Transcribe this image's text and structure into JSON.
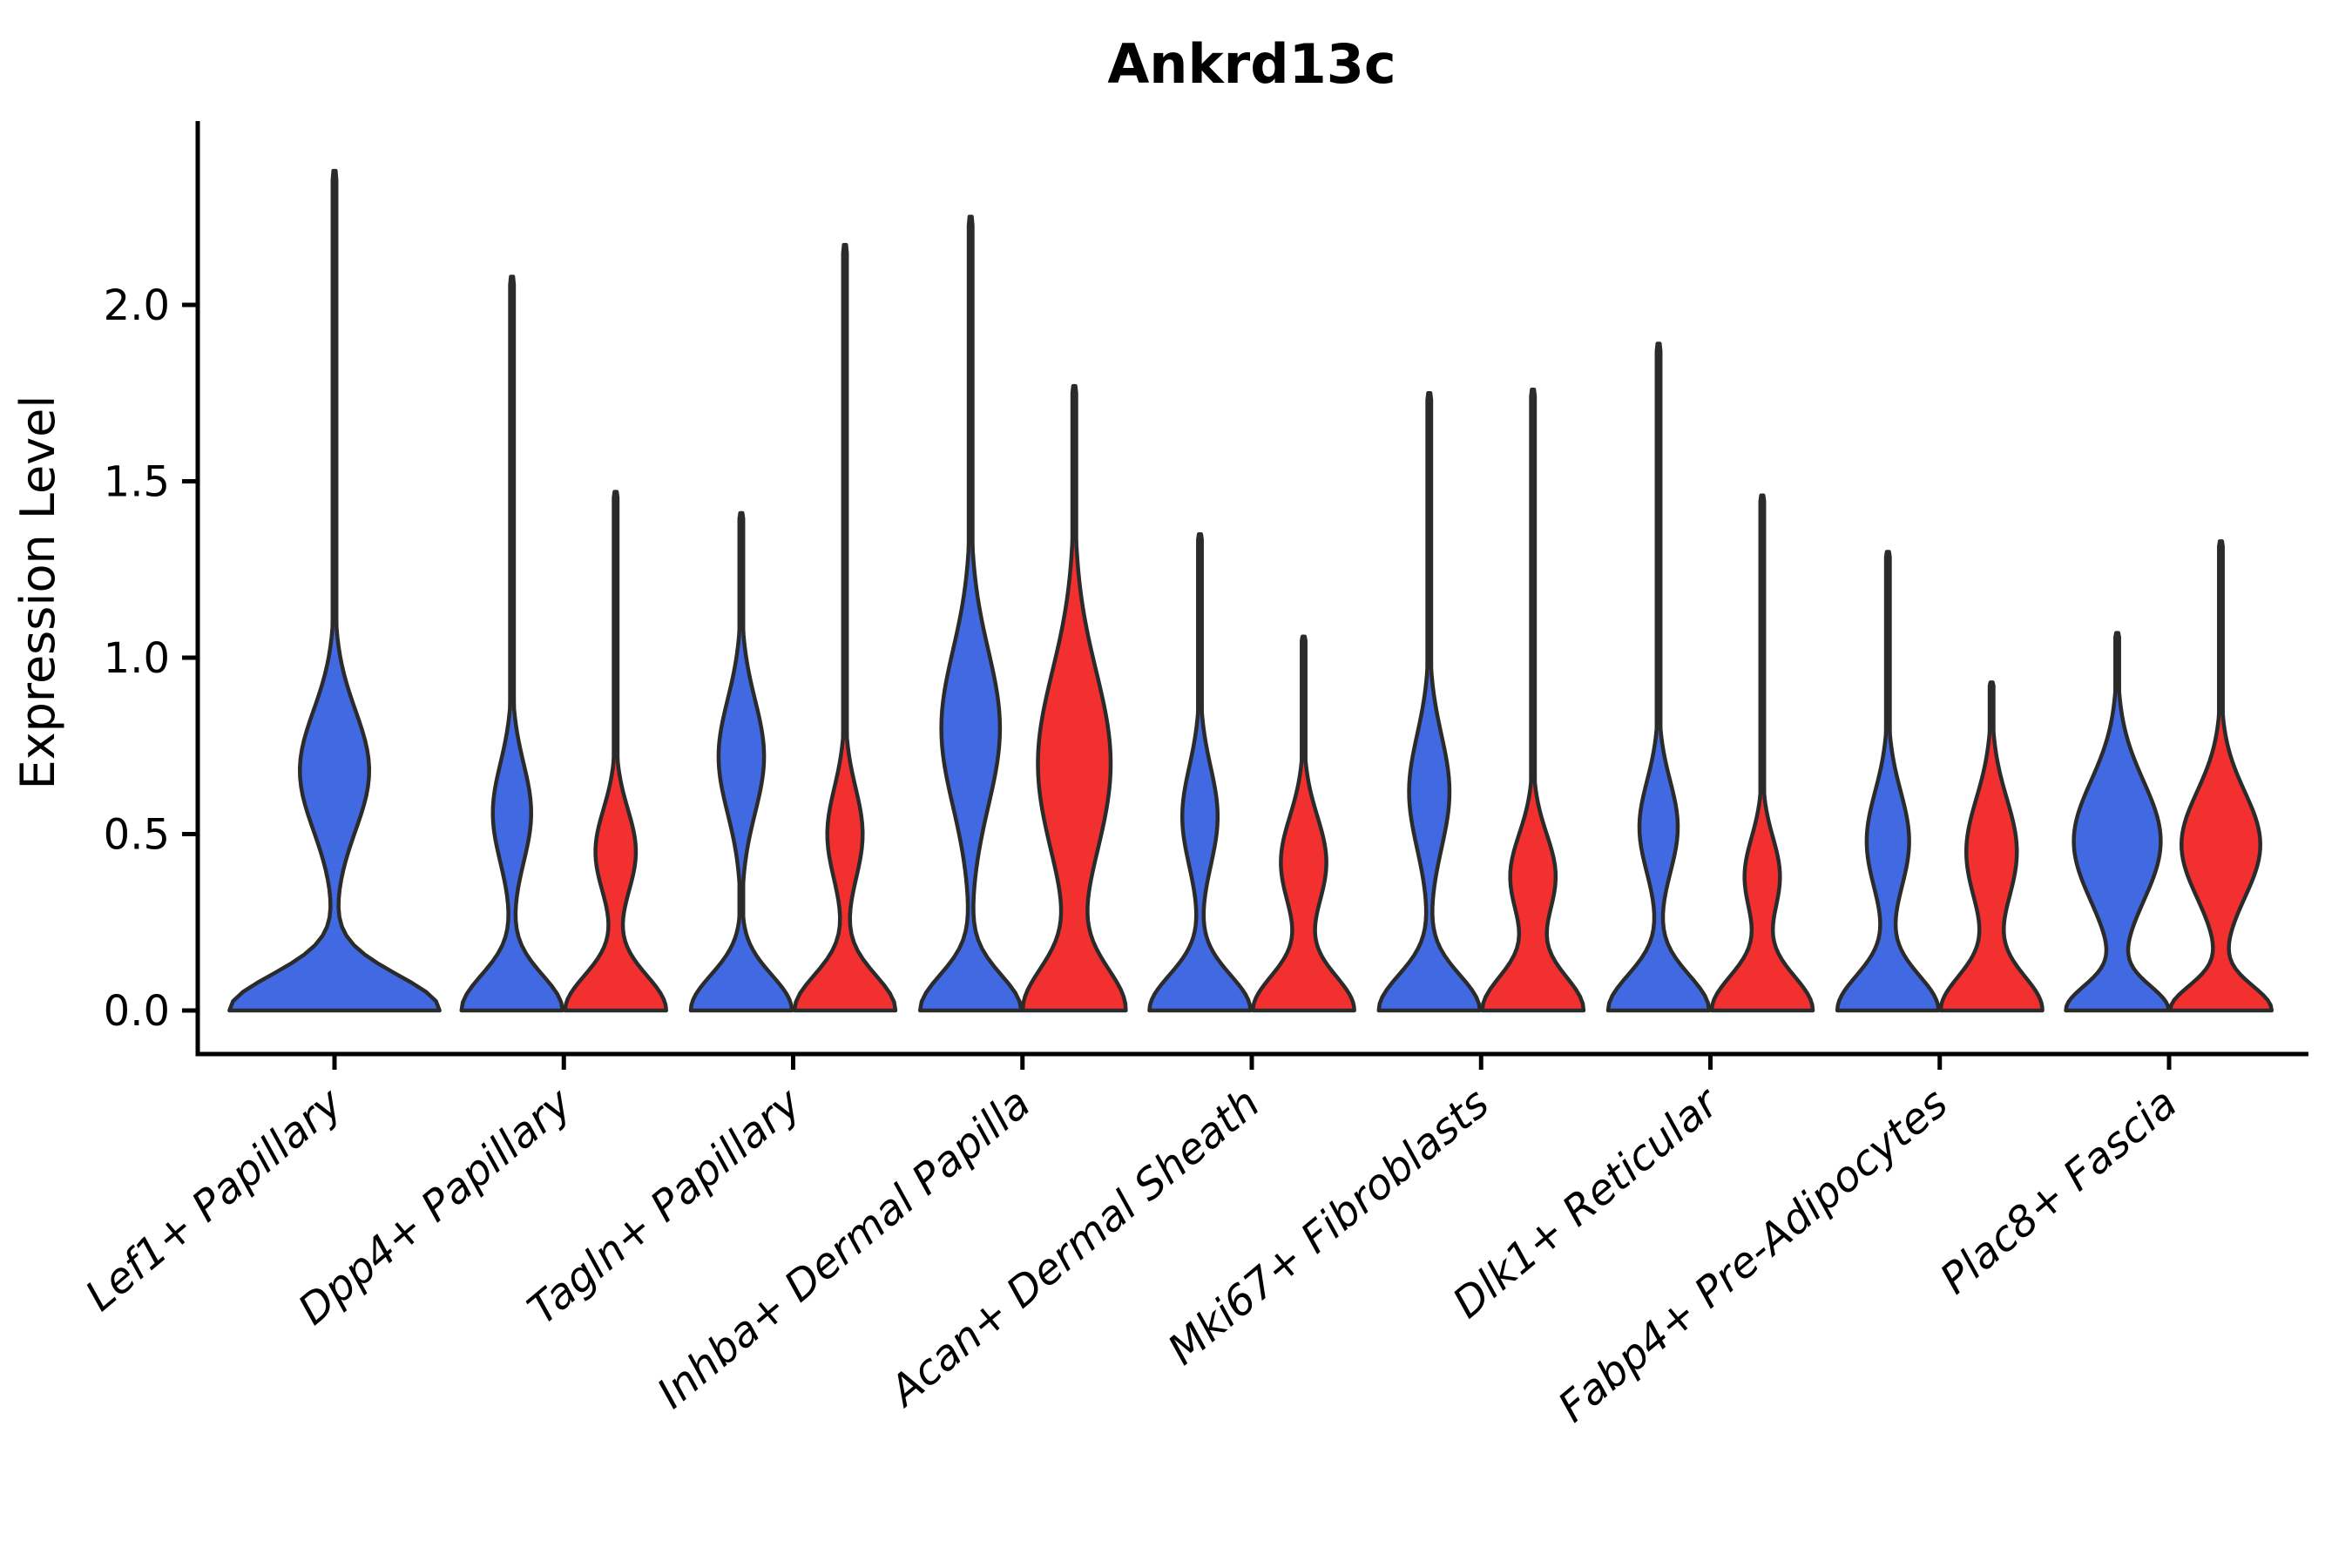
{
  "figure": {
    "background": "#ffffff",
    "edge_color": "#2b2b2b",
    "spine_color": "#000000"
  },
  "chart_data": {
    "type": "violin",
    "title": "Ankrd13c",
    "xlabel": "",
    "ylabel": "Expression Level",
    "ylim": [
      0,
      2.52
    ],
    "yticks": [
      "0.0",
      "0.5",
      "1.0",
      "1.5",
      "2.0"
    ],
    "ytick_values": [
      0.0,
      0.5,
      1.0,
      1.5,
      2.0
    ],
    "grid": false,
    "legend": "none",
    "categories": [
      "Lef1+ Papillary",
      "Dpp4+ Papillary",
      "Tagln+ Papillary",
      "Inhba+ Dermal Papilla",
      "Acan+ Dermal Sheath",
      "Mki67+ Fibroblasts",
      "Dlk1+ Reticular",
      "Fabp4+ Pre-Adipocytes",
      "Plac8+ Fascia"
    ],
    "series": [
      {
        "name": "blue",
        "color": "#4169E1",
        "max_values": [
          2.38,
          2.08,
          1.41,
          2.25,
          1.35,
          1.75,
          1.89,
          1.3,
          1.07
        ],
        "violins": [
          {
            "max": 2.38,
            "bulge_center": 0.68,
            "bulge_sigma": 0.17,
            "bulge_rel": 0.33,
            "base_sigma": 0.1,
            "width": 2.08,
            "single": true
          },
          {
            "max": 2.08,
            "bulge_center": 0.56,
            "bulge_sigma": 0.14,
            "bulge_rel": 0.38,
            "base_sigma": 0.1,
            "width": 1.0,
            "single": false
          },
          {
            "max": 1.41,
            "bulge_center": 0.72,
            "bulge_sigma": 0.16,
            "bulge_rel": 0.45,
            "base_sigma": 0.1,
            "width": 1.0,
            "single": false
          },
          {
            "max": 2.25,
            "bulge_center": 0.8,
            "bulge_sigma": 0.22,
            "bulge_rel": 0.58,
            "base_sigma": 0.1,
            "width": 1.0,
            "single": false
          },
          {
            "max": 1.35,
            "bulge_center": 0.55,
            "bulge_sigma": 0.14,
            "bulge_rel": 0.35,
            "base_sigma": 0.1,
            "width": 1.0,
            "single": false
          },
          {
            "max": 1.75,
            "bulge_center": 0.62,
            "bulge_sigma": 0.16,
            "bulge_rel": 0.4,
            "base_sigma": 0.1,
            "width": 1.0,
            "single": false
          },
          {
            "max": 1.89,
            "bulge_center": 0.52,
            "bulge_sigma": 0.13,
            "bulge_rel": 0.38,
            "base_sigma": 0.1,
            "width": 1.0,
            "single": false
          },
          {
            "max": 1.3,
            "bulge_center": 0.48,
            "bulge_sigma": 0.14,
            "bulge_rel": 0.42,
            "base_sigma": 0.1,
            "width": 1.0,
            "single": false
          },
          {
            "max": 1.07,
            "bulge_center": 0.48,
            "bulge_sigma": 0.17,
            "bulge_rel": 0.86,
            "base_sigma": 0.07,
            "width": 1.0,
            "single": false
          }
        ]
      },
      {
        "name": "red",
        "color": "#F23030",
        "max_values": [
          null,
          1.47,
          2.17,
          1.77,
          1.06,
          1.76,
          1.46,
          0.93,
          1.33
        ],
        "violins": [
          null,
          {
            "max": 1.47,
            "bulge_center": 0.45,
            "bulge_sigma": 0.12,
            "bulge_rel": 0.4,
            "base_sigma": 0.1,
            "width": 1.0,
            "single": false
          },
          {
            "max": 2.17,
            "bulge_center": 0.5,
            "bulge_sigma": 0.13,
            "bulge_rel": 0.35,
            "base_sigma": 0.1,
            "width": 1.0,
            "single": false
          },
          {
            "max": 1.77,
            "bulge_center": 0.7,
            "bulge_sigma": 0.26,
            "bulge_rel": 0.72,
            "base_sigma": 0.12,
            "width": 1.0,
            "single": false
          },
          {
            "max": 1.06,
            "bulge_center": 0.42,
            "bulge_sigma": 0.13,
            "bulge_rel": 0.45,
            "base_sigma": 0.1,
            "width": 1.0,
            "single": false
          },
          {
            "max": 1.76,
            "bulge_center": 0.38,
            "bulge_sigma": 0.12,
            "bulge_rel": 0.45,
            "base_sigma": 0.1,
            "width": 1.0,
            "single": false
          },
          {
            "max": 1.46,
            "bulge_center": 0.38,
            "bulge_sigma": 0.11,
            "bulge_rel": 0.35,
            "base_sigma": 0.1,
            "width": 1.0,
            "single": false
          },
          {
            "max": 0.93,
            "bulge_center": 0.45,
            "bulge_sigma": 0.15,
            "bulge_rel": 0.5,
            "base_sigma": 0.1,
            "width": 1.0,
            "single": false
          },
          {
            "max": 1.33,
            "bulge_center": 0.47,
            "bulge_sigma": 0.15,
            "bulge_rel": 0.78,
            "base_sigma": 0.07,
            "width": 1.0,
            "single": false
          }
        ]
      }
    ]
  }
}
